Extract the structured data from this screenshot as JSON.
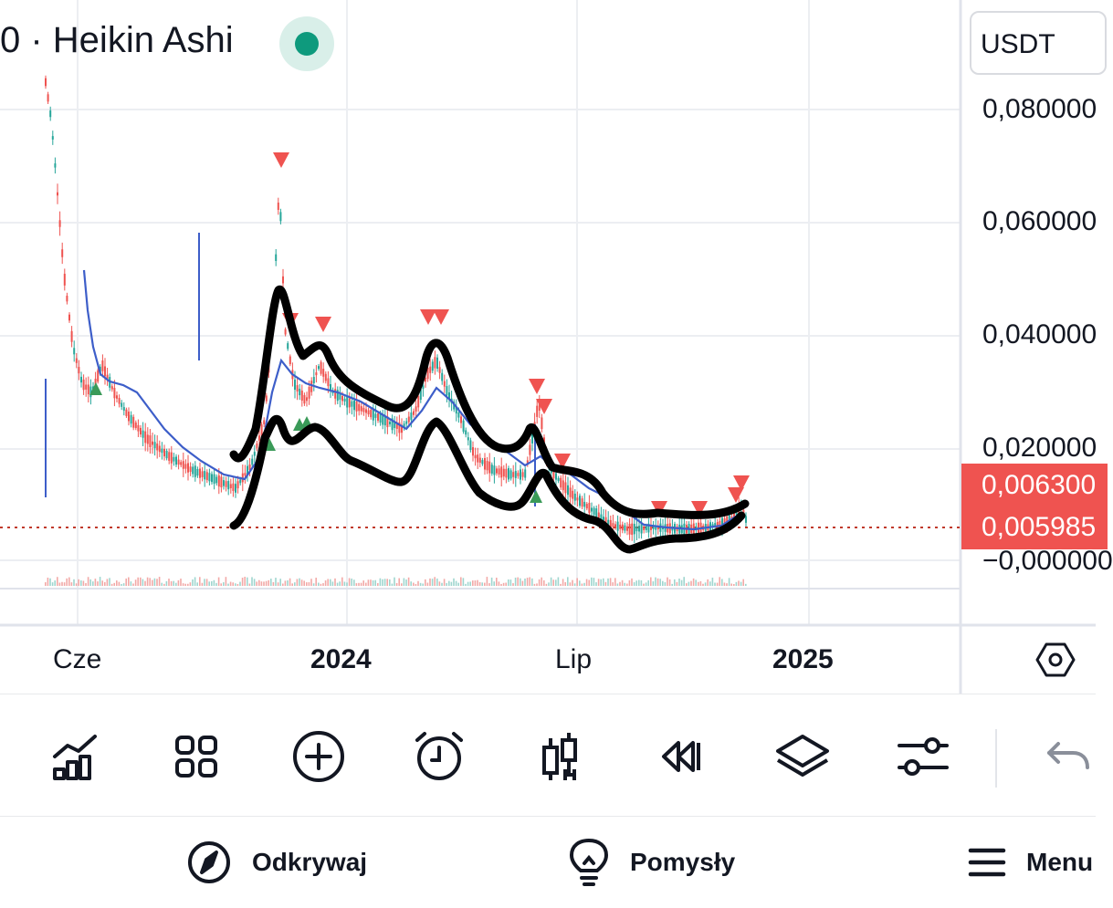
{
  "header": {
    "title": "0 · Heikin Ashi",
    "currency": "USDT"
  },
  "price_axis": {
    "labels": [
      "0,080000",
      "0,060000",
      "0,040000",
      "0,020000",
      "−0,000000"
    ],
    "tag_upper": "0,006300",
    "tag_lower": "0,005985"
  },
  "time_axis": {
    "labels": [
      "Cze",
      "2024",
      "Lip",
      "2025"
    ]
  },
  "colors": {
    "bull": "#26a69a",
    "bear": "#ef5350",
    "ma_line": "#3d5ec9",
    "last_price_line": "#c0392b",
    "annotation": "#000000"
  },
  "toolbar": {
    "icons": [
      "indicators-icon",
      "layout-grid-icon",
      "add-icon",
      "alert-clock-icon",
      "chart-type-icon",
      "replay-icon",
      "layers-icon",
      "settings-sliders-icon",
      "undo-icon"
    ]
  },
  "bottom_nav": {
    "discover_label": "Odkrywaj",
    "ideas_label": "Pomysły",
    "menu_label": "Menu"
  }
}
